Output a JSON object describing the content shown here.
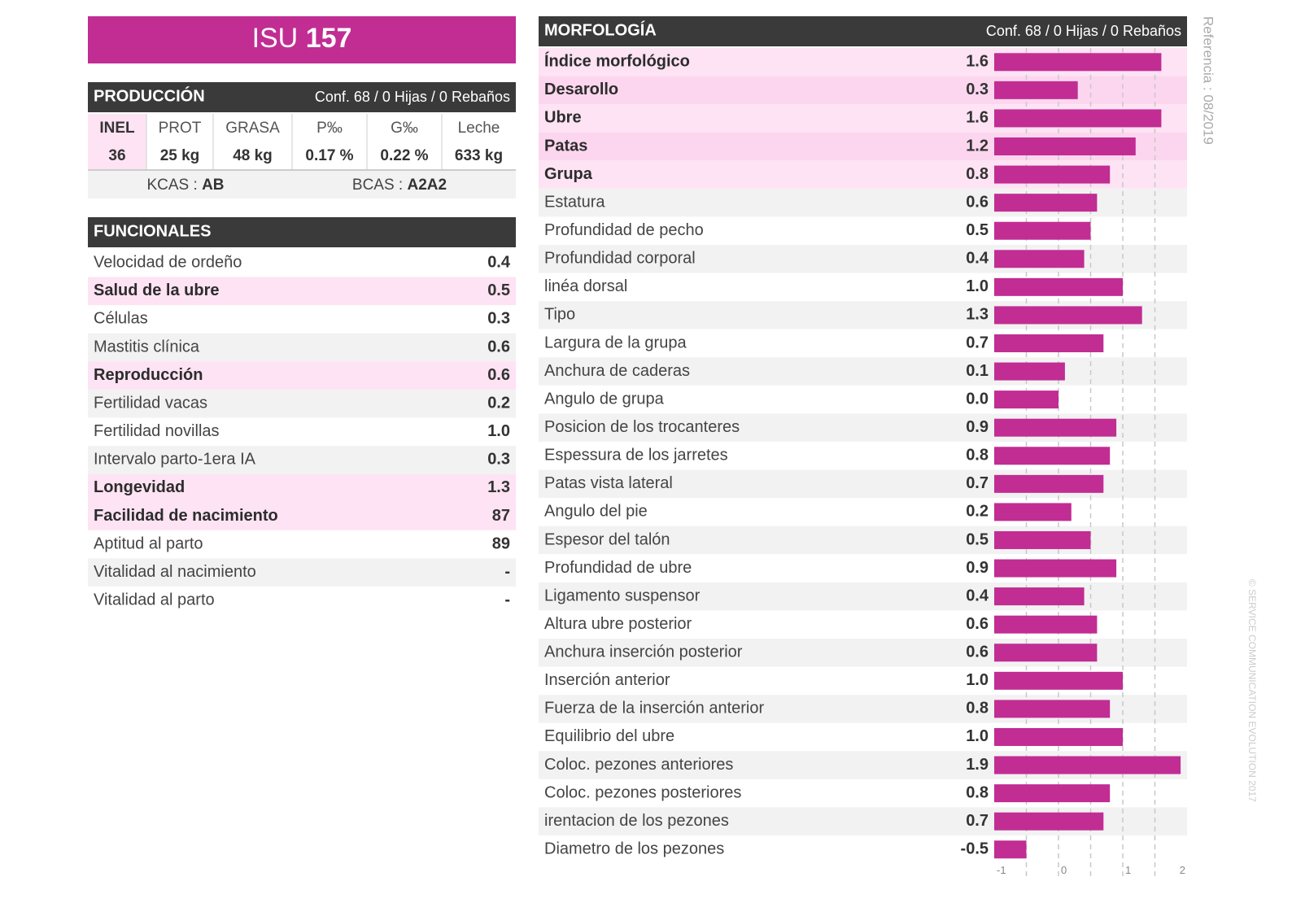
{
  "header": {
    "prefix": "ISU",
    "number": "157"
  },
  "produccion": {
    "title": "PRODUCCIÓN",
    "conf": "Conf. 68 / 0 Hijas / 0 Rebaños",
    "columns": [
      "INEL",
      "PROT",
      "GRASA",
      "P‰",
      "G‰",
      "Leche"
    ],
    "values": [
      "36",
      "25 kg",
      "48 kg",
      "0.17 %",
      "0.22 %",
      "633 kg"
    ],
    "kcas": {
      "label": "KCAS :",
      "value": "AB"
    },
    "bcas": {
      "label": "BCAS :",
      "value": "A2A2"
    }
  },
  "funcionales": {
    "title": "FUNCIONALES",
    "rows": [
      {
        "label": "Velocidad de ordeño",
        "value": "0.4",
        "highlight": false
      },
      {
        "label": "Salud de la ubre",
        "value": "0.5",
        "highlight": true
      },
      {
        "label": "Células",
        "value": "0.3",
        "highlight": false
      },
      {
        "label": "Mastitis clínica",
        "value": "0.6",
        "highlight": false
      },
      {
        "label": "Reproducción",
        "value": "0.6",
        "highlight": true
      },
      {
        "label": "Fertilidad vacas",
        "value": "0.2",
        "highlight": false
      },
      {
        "label": "Fertilidad novillas",
        "value": "1.0",
        "highlight": false
      },
      {
        "label": "Intervalo parto-1era IA",
        "value": "0.3",
        "highlight": false
      },
      {
        "label": "Longevidad",
        "value": "1.3",
        "highlight": true
      },
      {
        "label": "Facilidad de nacimiento",
        "value": "87",
        "highlight": true
      },
      {
        "label": "Aptitud al parto",
        "value": "89",
        "highlight": false
      },
      {
        "label": "Vitalidad al nacimiento",
        "value": "-",
        "highlight": false
      },
      {
        "label": "Vitalidad al parto",
        "value": "-",
        "highlight": false
      }
    ]
  },
  "chart_data": {
    "type": "bar",
    "title": "MORFOLOGÍA",
    "subtitle": "Conf. 68 / 0 Hijas / 0 Rebaños",
    "categories": [
      "Índice morfológico",
      "Desarollo",
      "Ubre",
      "Patas",
      "Grupa",
      "Estatura",
      "Profundidad de pecho",
      "Profundidad corporal",
      "linéa dorsal",
      "Tipo",
      "Largura de la grupa",
      "Anchura de caderas",
      "Angulo de grupa",
      "Posicion de los trocanteres",
      "Espessura de los jarretes",
      "Patas vista lateral",
      "Angulo del pie",
      "Espesor del talón",
      "Profundidad de ubre",
      "Ligamento suspensor",
      "Altura ubre posterior",
      "Anchura inserción posterior",
      "Inserción anterior",
      "Fuerza de la inserción anterior",
      "Equilibrio del ubre",
      "Coloc. pezones anteriores",
      "Coloc. pezones posteriores",
      "irentacion de los pezones",
      "Diametro de los pezones"
    ],
    "values": [
      1.6,
      0.3,
      1.6,
      1.2,
      0.8,
      0.6,
      0.5,
      0.4,
      1,
      1.3,
      0.7,
      0.1,
      0,
      0.9,
      0.8,
      0.7,
      0.2,
      0.5,
      0.9,
      0.4,
      0.6,
      0.6,
      1,
      0.8,
      1,
      1.9,
      0.8,
      0.7,
      -0.5
    ],
    "value_labels": [
      "1.6",
      "0.3",
      "1.6",
      "1.2",
      "0.8",
      "0.6",
      "0.5",
      "0.4",
      "1.0",
      "1.3",
      "0.7",
      "0.1",
      "0.0",
      "0.9",
      "0.8",
      "0.7",
      "0.2",
      "0.5",
      "0.9",
      "0.4",
      "0.6",
      "0.6",
      "1.0",
      "0.8",
      "1.0",
      "1.9",
      "0.8",
      "0.7",
      "-0.5"
    ],
    "highlight": [
      true,
      true,
      true,
      true,
      true,
      false,
      false,
      false,
      false,
      false,
      false,
      false,
      false,
      false,
      false,
      false,
      false,
      false,
      false,
      false,
      false,
      false,
      false,
      false,
      false,
      false,
      false,
      false,
      false
    ],
    "color": "#c12d93",
    "xlim": [
      -1,
      2
    ],
    "xticks": [
      -1,
      0,
      1,
      2
    ],
    "gridlines": [
      -0.5,
      0,
      0.5,
      1,
      1.5
    ]
  },
  "side": {
    "reference": "Referencia : 08/2019",
    "copyright": "© SERVICE COMMUNICATION EVOLUTION 2017"
  }
}
